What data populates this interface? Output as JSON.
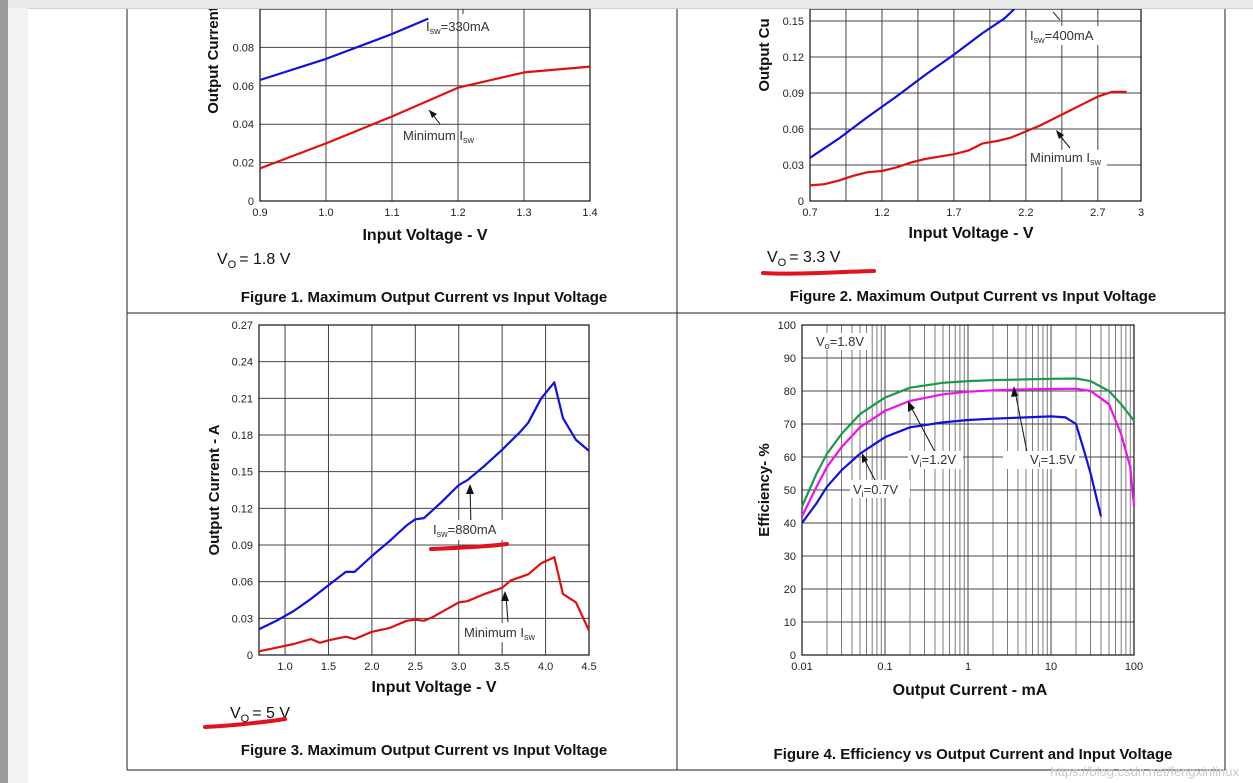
{
  "watermark": "https://blog.csdn.net/fengxinlinux",
  "chart_data": [
    {
      "type": "line",
      "caption": "Figure 1. Maximum Output Current vs Input Voltage",
      "vo_label": "V",
      "vo_sub": "O",
      "vo_value": "= 1.8 V",
      "xlabel": "Input Voltage - V",
      "ylabel": "Output Current",
      "xlim": [
        0.9,
        1.4
      ],
      "ylim": [
        0,
        0.1
      ],
      "xticks": [
        0.9,
        1.0,
        1.1,
        1.2,
        1.3,
        1.4
      ],
      "xtick_labels": [
        "0.9",
        "1.0",
        "1.1",
        "1.2",
        "1.3",
        "1.4"
      ],
      "yticks": [
        0,
        0.02,
        0.04,
        0.06,
        0.08
      ],
      "ytick_labels": [
        "0",
        "0.02",
        "0.04",
        "0.06",
        "0.08"
      ],
      "series": [
        {
          "name": "Isw=330mA",
          "color": "#1010e0",
          "x": [
            0.9,
            1.0,
            1.1,
            1.155
          ],
          "y": [
            0.063,
            0.074,
            0.087,
            0.095
          ]
        },
        {
          "name": "Minimum Isw",
          "color": "#e01010",
          "x": [
            0.9,
            1.0,
            1.1,
            1.2,
            1.3,
            1.4
          ],
          "y": [
            0.017,
            0.03,
            0.044,
            0.059,
            0.067,
            0.07
          ]
        }
      ],
      "annotations": [
        {
          "text": "I",
          "sub": "sw",
          "rest": "=330mA"
        },
        {
          "text": "Minimum I",
          "sub": "sw",
          "rest": ""
        }
      ]
    },
    {
      "type": "line",
      "caption": "Figure 2. Maximum Output Current vs Input Voltage",
      "vo_label": "V",
      "vo_sub": "O",
      "vo_value": "= 3.3 V",
      "xlabel": "Input Voltage - V",
      "ylabel": "Output Cu",
      "xlim": [
        0.7,
        3.0
      ],
      "ylim": [
        0,
        0.16
      ],
      "xticks": [
        0.7,
        1.2,
        1.7,
        2.2,
        2.7,
        3.0
      ],
      "xtick_labels": [
        "0.7",
        "1.2",
        "1.7",
        "2.2",
        "2.7",
        "3"
      ],
      "yticks": [
        0,
        0.03,
        0.06,
        0.09,
        0.12,
        0.15
      ],
      "ytick_labels": [
        "0",
        "0.03",
        "0.06",
        "0.09",
        "0.12",
        "0.15"
      ],
      "series": [
        {
          "name": "Isw=400mA",
          "color": "#1010e0",
          "x": [
            0.7,
            0.9,
            1.1,
            1.3,
            1.5,
            1.7,
            1.9,
            2.05,
            2.12
          ],
          "y": [
            0.036,
            0.052,
            0.07,
            0.087,
            0.105,
            0.122,
            0.14,
            0.152,
            0.16
          ]
        },
        {
          "name": "Minimum Isw",
          "color": "#e01010",
          "x": [
            0.7,
            0.8,
            0.9,
            1.0,
            1.1,
            1.2,
            1.3,
            1.4,
            1.5,
            1.6,
            1.7,
            1.8,
            1.9,
            2.0,
            2.1,
            2.2,
            2.3,
            2.4,
            2.5,
            2.6,
            2.7,
            2.8,
            2.9
          ],
          "y": [
            0.013,
            0.014,
            0.017,
            0.021,
            0.024,
            0.025,
            0.028,
            0.032,
            0.035,
            0.037,
            0.039,
            0.042,
            0.048,
            0.05,
            0.053,
            0.058,
            0.063,
            0.069,
            0.075,
            0.081,
            0.087,
            0.091,
            0.091
          ]
        }
      ],
      "annotations": [
        {
          "text": "I",
          "sub": "sw",
          "rest": "=400mA"
        },
        {
          "text": "Minimum I",
          "sub": "sw",
          "rest": ""
        }
      ]
    },
    {
      "type": "line",
      "caption": "Figure 3. Maximum Output Current vs Input Voltage",
      "vo_label": "V",
      "vo_sub": "O",
      "vo_value": "= 5 V",
      "xlabel": "Input Voltage - V",
      "ylabel": "Output Current - A",
      "xlim": [
        0.7,
        4.5
      ],
      "ylim": [
        0,
        0.27
      ],
      "xticks": [
        1.0,
        1.5,
        2.0,
        2.5,
        3.0,
        3.5,
        4.0,
        4.5
      ],
      "xtick_labels": [
        "1.0",
        "1.5",
        "2.0",
        "2.5",
        "3.0",
        "3.5",
        "4.0",
        "4.5"
      ],
      "yticks": [
        0,
        0.03,
        0.06,
        0.09,
        0.12,
        0.15,
        0.18,
        0.21,
        0.24,
        0.27
      ],
      "ytick_labels": [
        "0",
        "0.03",
        "0.06",
        "0.09",
        "0.12",
        "0.15",
        "0.18",
        "0.21",
        "0.24",
        "0.27"
      ],
      "series": [
        {
          "name": "Isw=880mA",
          "color": "#1010e0",
          "x": [
            0.7,
            0.9,
            1.1,
            1.3,
            1.5,
            1.7,
            1.8,
            2.0,
            2.2,
            2.4,
            2.5,
            2.6,
            2.8,
            3.0,
            3.1,
            3.3,
            3.5,
            3.7,
            3.8,
            3.95,
            4.1,
            4.2,
            4.35,
            4.5
          ],
          "y": [
            0.021,
            0.028,
            0.036,
            0.046,
            0.057,
            0.068,
            0.068,
            0.081,
            0.093,
            0.106,
            0.111,
            0.112,
            0.125,
            0.139,
            0.143,
            0.155,
            0.168,
            0.182,
            0.19,
            0.21,
            0.223,
            0.194,
            0.176,
            0.167
          ]
        },
        {
          "name": "Minimum Isw",
          "color": "#e01010",
          "x": [
            0.7,
            0.9,
            1.1,
            1.3,
            1.4,
            1.5,
            1.7,
            1.8,
            2.0,
            2.2,
            2.4,
            2.5,
            2.6,
            2.7,
            2.9,
            3.0,
            3.1,
            3.3,
            3.5,
            3.6,
            3.8,
            3.95,
            4.1,
            4.2,
            4.35,
            4.5
          ],
          "y": [
            0.003,
            0.006,
            0.009,
            0.013,
            0.01,
            0.012,
            0.015,
            0.013,
            0.019,
            0.022,
            0.028,
            0.029,
            0.028,
            0.031,
            0.039,
            0.043,
            0.044,
            0.05,
            0.055,
            0.061,
            0.066,
            0.075,
            0.08,
            0.05,
            0.043,
            0.02
          ]
        }
      ],
      "annotations": [
        {
          "text": "I",
          "sub": "sw",
          "rest": "=880mA"
        },
        {
          "text": "Minimum I",
          "sub": "sw",
          "rest": ""
        }
      ]
    },
    {
      "type": "line",
      "caption": "Figure 4. Efficiency vs Output Current and Input Voltage",
      "xlabel": "Output Current - mA",
      "ylabel": "Efficiency- %",
      "xscale": "log",
      "xlim": [
        0.01,
        100
      ],
      "ylim": [
        0,
        100
      ],
      "xticks": [
        0.01,
        0.1,
        1,
        10,
        100
      ],
      "xtick_labels": [
        "0.01",
        "0.1",
        "1",
        "10",
        "100"
      ],
      "yticks": [
        0,
        10,
        20,
        30,
        40,
        50,
        60,
        70,
        80,
        90,
        100
      ],
      "ytick_labels": [
        "0",
        "10",
        "20",
        "30",
        "40",
        "50",
        "60",
        "70",
        "80",
        "90",
        "100"
      ],
      "series": [
        {
          "name": "Vi=1.5V",
          "color": "#1a9a4a",
          "x": [
            0.01,
            0.015,
            0.02,
            0.03,
            0.05,
            0.1,
            0.2,
            0.5,
            1,
            2,
            5,
            10,
            20,
            30,
            50,
            70,
            100
          ],
          "y": [
            45,
            55,
            61,
            67,
            73,
            78,
            81,
            82.5,
            83,
            83.3,
            83.5,
            83.7,
            83.8,
            83,
            80,
            76,
            71
          ]
        },
        {
          "name": "Vi=1.2V",
          "color": "#ee10ee",
          "x": [
            0.01,
            0.015,
            0.02,
            0.03,
            0.05,
            0.1,
            0.2,
            0.5,
            1,
            2,
            5,
            10,
            20,
            30,
            50,
            70,
            90,
            100
          ],
          "y": [
            42,
            51,
            57,
            63,
            69,
            74,
            77,
            79,
            79.8,
            80.2,
            80.5,
            80.6,
            80.7,
            80,
            76,
            67,
            57,
            45
          ]
        },
        {
          "name": "Vi=0.7V",
          "color": "#1010e0",
          "x": [
            0.01,
            0.015,
            0.02,
            0.03,
            0.05,
            0.1,
            0.2,
            0.5,
            1,
            2,
            5,
            10,
            15,
            20,
            25,
            30,
            35,
            40
          ],
          "y": [
            40,
            46,
            51,
            56,
            61,
            66,
            69,
            70.5,
            71.2,
            71.6,
            72,
            72.3,
            72,
            70,
            62,
            55,
            48,
            42
          ]
        }
      ],
      "annotations": [
        {
          "text": "V",
          "sub": "o",
          "rest": "=1.8V"
        },
        {
          "text": "V",
          "sub": "i",
          "rest": "=1.2V"
        },
        {
          "text": "V",
          "sub": "i",
          "rest": "=1.5V"
        },
        {
          "text": "V",
          "sub": "i",
          "rest": "=0.7V"
        }
      ]
    }
  ]
}
